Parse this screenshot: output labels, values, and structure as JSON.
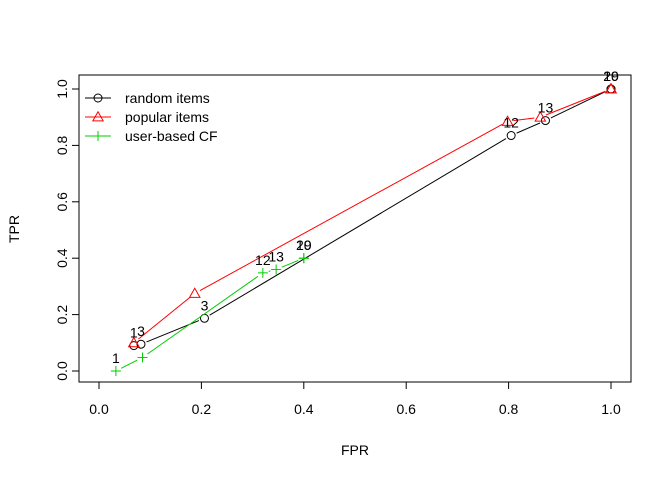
{
  "chart_data": {
    "type": "line",
    "title": "",
    "xlabel": "FPR",
    "ylabel": "TPR",
    "xlim": [
      0,
      1
    ],
    "ylim": [
      0,
      1
    ],
    "x_ticks": [
      0.0,
      0.2,
      0.4,
      0.6,
      0.8,
      1.0
    ],
    "y_ticks": [
      0.0,
      0.2,
      0.4,
      0.6,
      0.8,
      1.0
    ],
    "x_tick_labels": [
      "0.0",
      "0.2",
      "0.4",
      "0.6",
      "0.8",
      "1.0"
    ],
    "y_tick_labels": [
      "0.0",
      "0.2",
      "0.4",
      "0.6",
      "0.8",
      "1.0"
    ],
    "grid": false,
    "legend_position": "top-left",
    "series": [
      {
        "name": "random items",
        "color": "#000000",
        "marker": "circle",
        "points": [
          {
            "x": 0.068,
            "y": 0.09,
            "label": "1"
          },
          {
            "x": 0.082,
            "y": 0.095,
            "label": "3"
          },
          {
            "x": 0.206,
            "y": 0.187,
            "label": "3"
          },
          {
            "x": 0.805,
            "y": 0.835,
            "label": "12"
          },
          {
            "x": 0.872,
            "y": 0.888,
            "label": "13"
          },
          {
            "x": 1.0,
            "y": 1.0,
            "label": "19"
          },
          {
            "x": 1.0,
            "y": 1.0,
            "label": "20"
          }
        ]
      },
      {
        "name": "popular items",
        "color": "#ff0000",
        "marker": "triangle",
        "points": [
          {
            "x": 0.068,
            "y": 0.1,
            "label": ""
          },
          {
            "x": 0.187,
            "y": 0.275,
            "label": ""
          },
          {
            "x": 0.798,
            "y": 0.885,
            "label": ""
          },
          {
            "x": 0.862,
            "y": 0.9,
            "label": ""
          },
          {
            "x": 1.0,
            "y": 1.0,
            "label": ""
          },
          {
            "x": 1.0,
            "y": 1.0,
            "label": ""
          }
        ]
      },
      {
        "name": "user-based CF",
        "color": "#00cd00",
        "marker": "plus",
        "points": [
          {
            "x": 0.033,
            "y": 0.0,
            "label": "1"
          },
          {
            "x": 0.085,
            "y": 0.048,
            "label": ""
          },
          {
            "x": 0.32,
            "y": 0.348,
            "label": "12"
          },
          {
            "x": 0.346,
            "y": 0.36,
            "label": "13"
          },
          {
            "x": 0.4,
            "y": 0.4,
            "label": "19"
          },
          {
            "x": 0.4,
            "y": 0.4,
            "label": "20"
          }
        ]
      }
    ]
  }
}
